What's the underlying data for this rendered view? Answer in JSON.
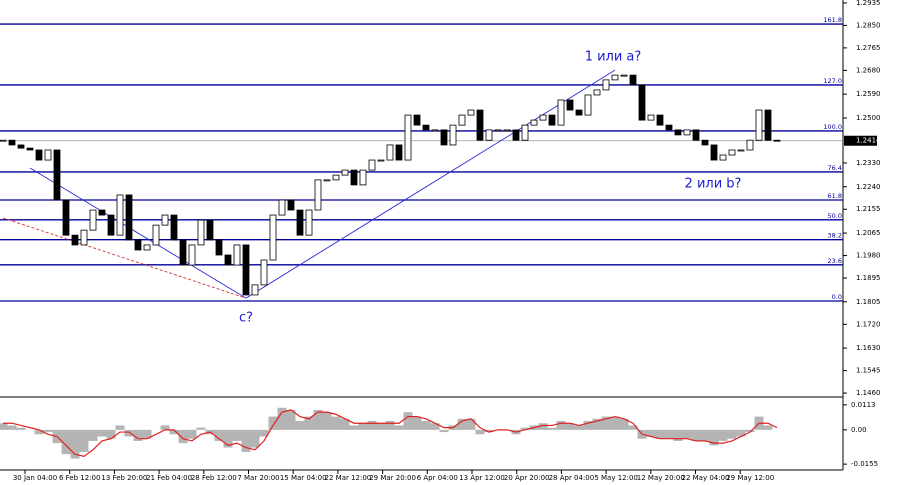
{
  "chart_data": {
    "type": "candlestick",
    "x_labels": [
      "30 Jan 04:00",
      "6 Feb 12:00",
      "13 Feb 20:00",
      "21 Feb 04:00",
      "28 Feb 12:00",
      "7 Mar 20:00",
      "15 Mar 04:00",
      "22 Mar 12:00",
      "29 Mar 20:00",
      "6 Apr 04:00",
      "13 Apr 12:00",
      "20 Apr 20:00",
      "28 Apr 04:00",
      "5 May 12:00",
      "12 May 20:00",
      "22 May 04:00",
      "29 May 12:00"
    ],
    "close": [
      1.2416,
      1.2398,
      1.2386,
      1.2379,
      1.2341,
      1.2379,
      1.219,
      1.2057,
      1.202,
      1.2076,
      1.2152,
      1.2133,
      1.2057,
      1.2209,
      1.2039,
      1.2001,
      1.202,
      1.2095,
      1.2133,
      1.2039,
      1.1944,
      1.202,
      1.2114,
      1.2039,
      1.1982,
      1.1944,
      1.202,
      1.1831,
      1.1869,
      1.1963,
      1.2133,
      1.219,
      1.2152,
      1.2057,
      1.2152,
      1.2266,
      1.2266,
      1.2284,
      1.2303,
      1.2247,
      1.2303,
      1.2341,
      1.2341,
      1.2398,
      1.2341,
      1.2511,
      1.2473,
      1.2455,
      1.2455,
      1.2398,
      1.2473,
      1.2511,
      1.253,
      1.2416,
      1.2455,
      1.2455,
      1.2455,
      1.2416,
      1.2473,
      1.2492,
      1.2511,
      1.2473,
      1.2568,
      1.253,
      1.2511,
      1.2587,
      1.2606,
      1.2644,
      1.2662,
      1.2662,
      1.2625,
      1.2492,
      1.2511,
      1.2473,
      1.2455,
      1.2436,
      1.2455,
      1.2416,
      1.2398,
      1.2341,
      1.236,
      1.2379,
      1.2379,
      1.2416,
      1.253,
      1.2416,
      1.2414
    ],
    "ylim": [
      1.1449,
      1.2946
    ],
    "yticks": [
      1.2935,
      {
        "value": 1.285,
        "label": "1.2850"
      },
      1.2765,
      {
        "value": 1.268,
        "label": "1.2680"
      },
      {
        "value": 1.259,
        "label": "1.2590"
      },
      {
        "value": 1.25,
        "label": "1.2500"
      },
      {
        "value": 1.233,
        "label": "1.2330"
      },
      {
        "value": 1.224,
        "label": "1.2240"
      },
      1.2155,
      1.2065,
      {
        "value": 1.198,
        "label": "1.1980"
      },
      1.1895,
      1.1805,
      {
        "value": 1.172,
        "label": "1.1720"
      },
      {
        "value": 1.163,
        "label": "1.1630"
      },
      1.1545,
      {
        "value": 1.146,
        "label": "1.1460"
      }
    ],
    "fib_levels": [
      {
        "label": "161.8",
        "price": 1.2855
      },
      {
        "label": "127.0",
        "price": 1.2625
      },
      {
        "label": "100.0",
        "price": 1.2451
      },
      {
        "label": "76.4",
        "price": 1.2296
      },
      {
        "label": "61.8",
        "price": 1.219
      },
      {
        "label": "50.0",
        "price": 1.2115
      },
      {
        "label": "38.2",
        "price": 1.204
      },
      {
        "label": "23.6",
        "price": 1.1945
      },
      {
        "label": "0.0",
        "price": 1.1808
      }
    ],
    "fib_color": "#00009c",
    "wave_lines": [
      {
        "from": [
          3,
          1.2311
        ],
        "to": [
          27,
          1.1819
        ],
        "color": "#2b2bd8",
        "dashed": false
      },
      {
        "from": [
          27,
          1.1819
        ],
        "to": [
          68,
          1.2681
        ],
        "color": "#2b2bd8",
        "dashed": false
      },
      {
        "from": [
          0,
          1.2122
        ],
        "to": [
          27,
          1.1819
        ],
        "color": "#e03030",
        "dashed": true
      }
    ],
    "annotations": [
      "1 или a?",
      "2 или b?",
      "c?"
    ],
    "oscillator": {
      "histogram": [
        0.003,
        0.002,
        0.001,
        0.0,
        -0.002,
        -0.001,
        -0.006,
        -0.011,
        -0.013,
        -0.01,
        -0.005,
        -0.003,
        -0.004,
        0.002,
        -0.003,
        -0.005,
        -0.004,
        0.0,
        0.002,
        -0.002,
        -0.006,
        -0.004,
        0.001,
        -0.002,
        -0.005,
        -0.008,
        -0.005,
        -0.01,
        -0.008,
        -0.003,
        0.006,
        0.01,
        0.009,
        0.004,
        0.006,
        0.009,
        0.008,
        0.006,
        0.005,
        0.002,
        0.003,
        0.004,
        0.003,
        0.004,
        0.002,
        0.008,
        0.006,
        0.004,
        0.003,
        -0.001,
        0.002,
        0.005,
        0.005,
        -0.002,
        -0.001,
        0.0,
        0.0,
        -0.002,
        0.001,
        0.002,
        0.003,
        0.001,
        0.004,
        0.003,
        0.002,
        0.004,
        0.005,
        0.006,
        0.006,
        0.005,
        0.002,
        -0.004,
        -0.003,
        -0.004,
        -0.004,
        -0.005,
        -0.004,
        -0.005,
        -0.005,
        -0.007,
        -0.005,
        -0.004,
        -0.003,
        -0.001,
        0.006,
        0.002,
        0.0
      ],
      "signal": [
        0.003,
        0.003,
        0.002,
        0.001,
        0.0,
        -0.002,
        -0.003,
        -0.007,
        -0.011,
        -0.012,
        -0.009,
        -0.005,
        -0.004,
        -0.001,
        -0.001,
        -0.004,
        -0.004,
        -0.002,
        0.0,
        0.0,
        -0.004,
        -0.005,
        -0.002,
        -0.001,
        -0.004,
        -0.007,
        -0.006,
        -0.008,
        -0.009,
        -0.005,
        0.002,
        0.008,
        0.009,
        0.006,
        0.005,
        0.008,
        0.008,
        0.007,
        0.005,
        0.003,
        0.003,
        0.003,
        0.003,
        0.003,
        0.003,
        0.006,
        0.006,
        0.005,
        0.003,
        0.001,
        0.001,
        0.004,
        0.005,
        0.001,
        -0.001,
        0.0,
        0.0,
        -0.001,
        0.0,
        0.001,
        0.002,
        0.002,
        0.003,
        0.003,
        0.002,
        0.003,
        0.004,
        0.005,
        0.006,
        0.005,
        0.003,
        -0.002,
        -0.003,
        -0.004,
        -0.004,
        -0.004,
        -0.004,
        -0.005,
        -0.005,
        -0.006,
        -0.006,
        -0.005,
        -0.003,
        -0.001,
        0.003,
        0.003,
        0.001
      ],
      "histogram_color": "#b4b4b4",
      "signal_color": "#e02020",
      "ylim": [
        -0.0177,
        0.0144
      ],
      "yticks": [
        0.0113,
        {
          "value": 0,
          "label": "0.00"
        },
        -0.0155
      ]
    }
  }
}
